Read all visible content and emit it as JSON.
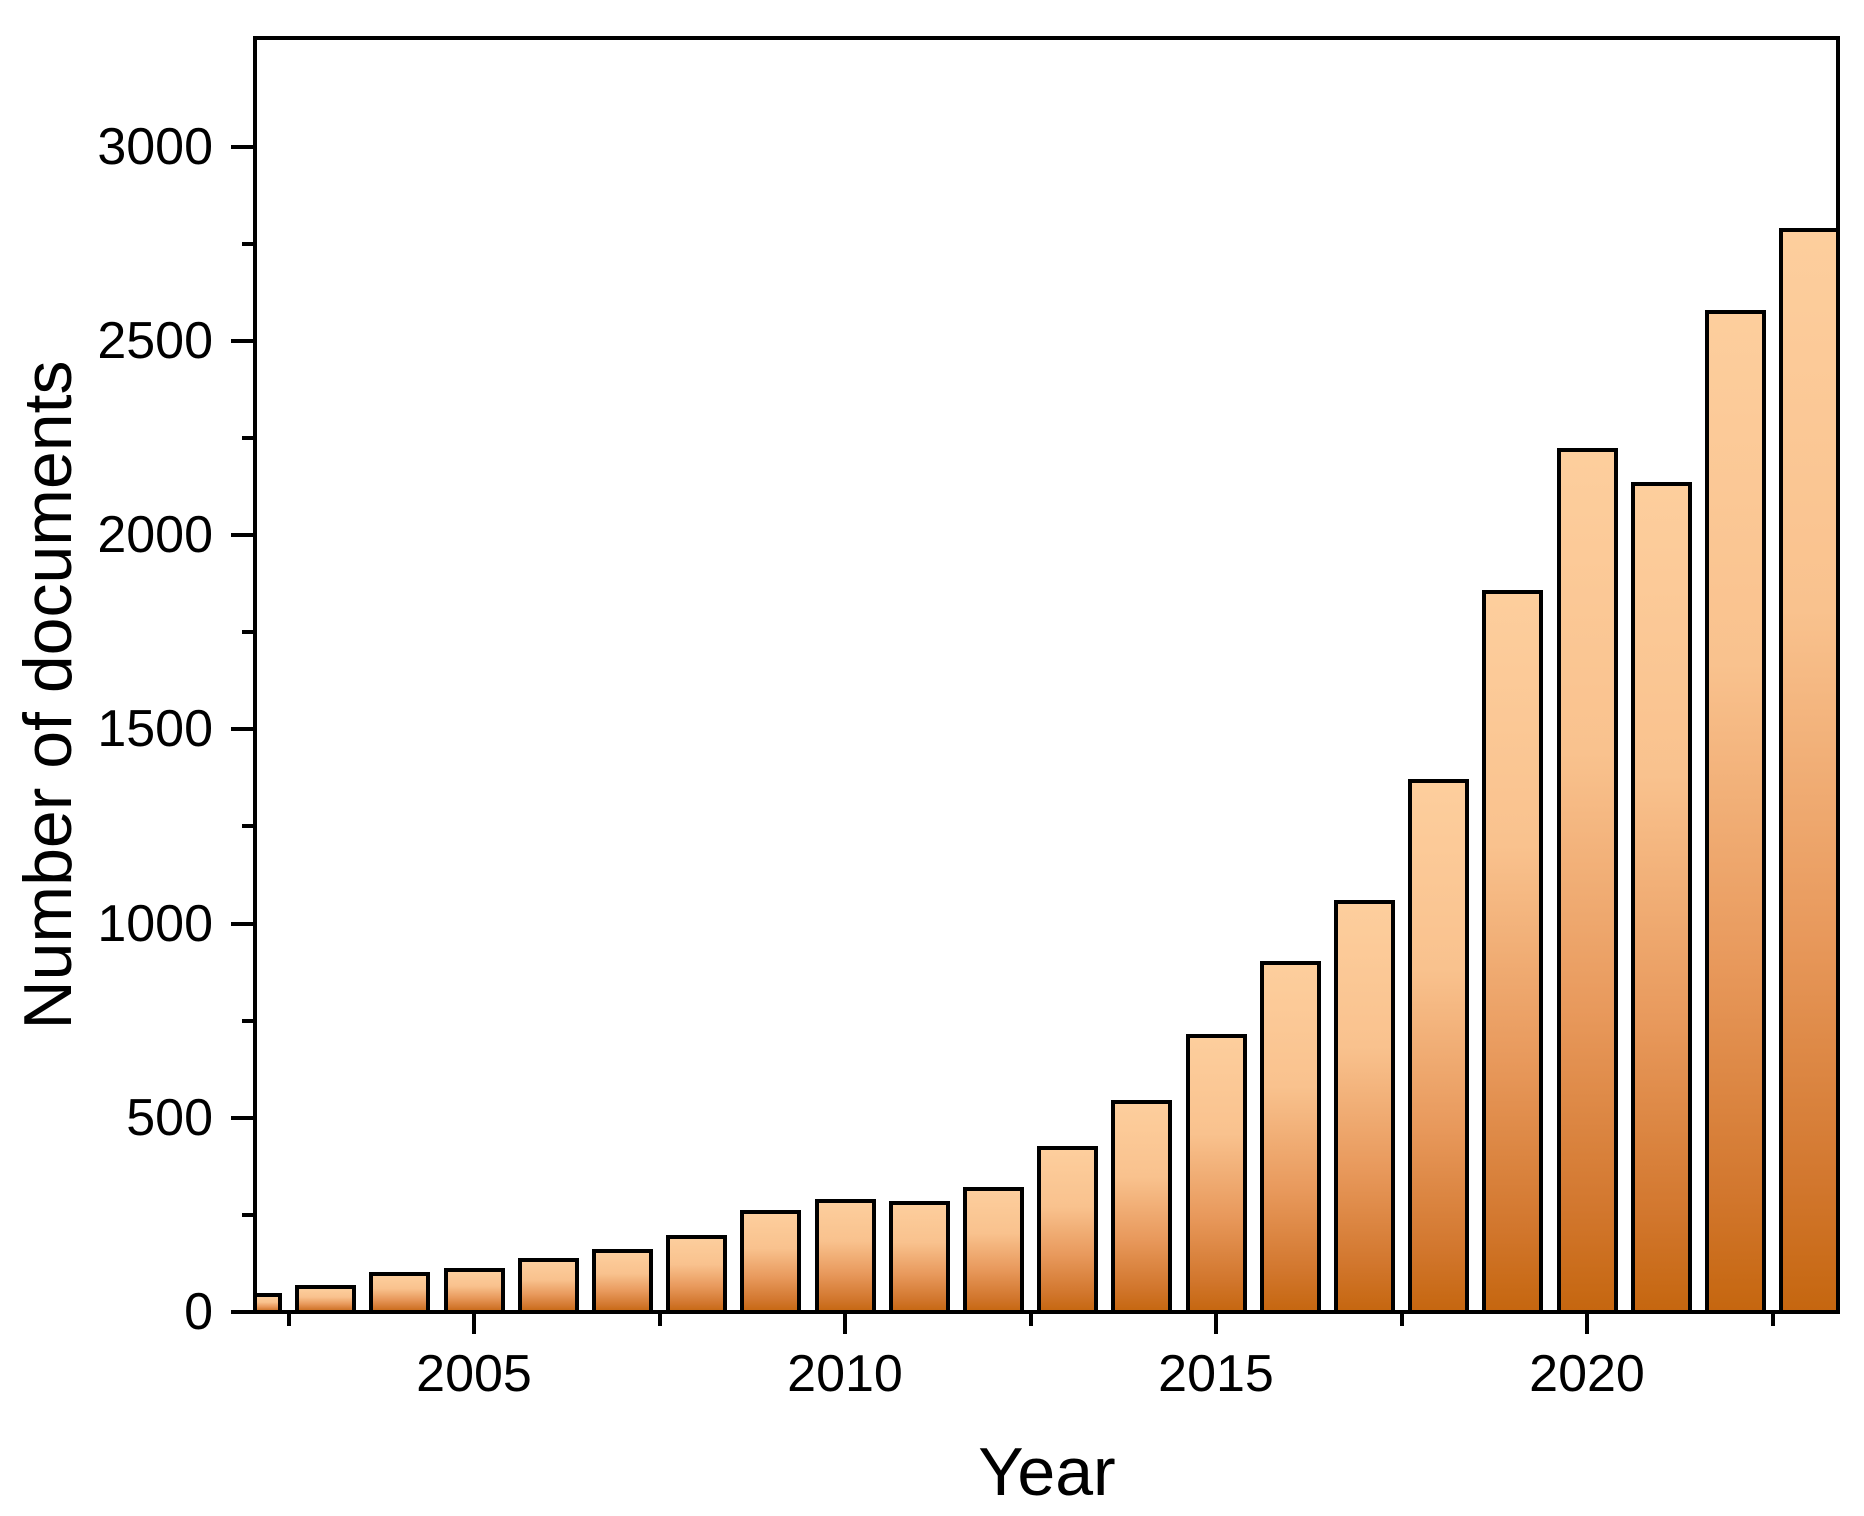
{
  "chart_data": {
    "type": "bar",
    "title": "",
    "xlabel": "Year",
    "ylabel": "Number of documents",
    "categories": [
      2002,
      2003,
      2004,
      2005,
      2006,
      2007,
      2008,
      2009,
      2010,
      2011,
      2012,
      2013,
      2014,
      2015,
      2016,
      2017,
      2018,
      2019,
      2020,
      2021,
      2022,
      2023
    ],
    "values": [
      50,
      70,
      104,
      114,
      139,
      163,
      197,
      262,
      291,
      286,
      323,
      428,
      547,
      716,
      904,
      1062,
      1371,
      1859,
      2224,
      2137,
      2581,
      2791
    ],
    "ylim": [
      0,
      3280
    ],
    "xlim": [
      2002,
      2023.4
    ],
    "y_major_ticks": [
      0,
      500,
      1000,
      1500,
      2000,
      2500,
      3000
    ],
    "y_minor_ticks": [
      250,
      750,
      1250,
      1750,
      2250,
      2750
    ],
    "x_major_ticks": [
      2005,
      2010,
      2015,
      2020
    ],
    "x_minor_ticks": [
      2002.5,
      2007.5,
      2012.5,
      2017.5,
      2022.5
    ],
    "grid": false,
    "legend": null,
    "bar_style": {
      "gradient_top": "#FDCE9D",
      "gradient_upper": "#F9C28E",
      "gradient_lower": "#E8995C",
      "gradient_deep": "#D2772E",
      "gradient_bottom": "#C5660F",
      "border_color": "#000000"
    },
    "axis_color": "#000000"
  }
}
